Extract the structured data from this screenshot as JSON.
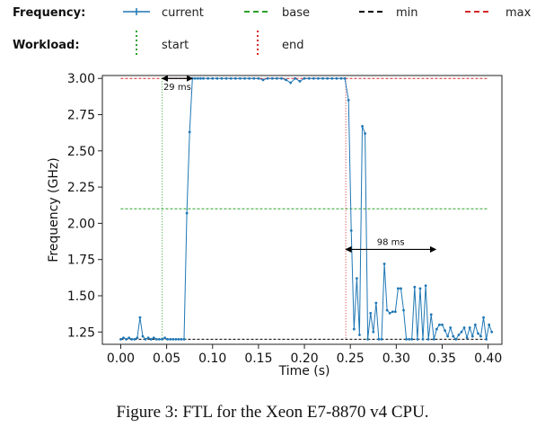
{
  "legend": {
    "frequency_title": "Frequency:",
    "workload_title": "Workload:",
    "items": [
      {
        "label": "current",
        "color": "#1f77b4",
        "style": "solid-with-markers"
      },
      {
        "label": "base",
        "color": "#2ca02c",
        "style": "dashed"
      },
      {
        "label": "min",
        "color": "#000000",
        "style": "dashed"
      },
      {
        "label": "max",
        "color": "#d62728",
        "style": "dashed"
      },
      {
        "label": "start",
        "color": "#2ca02c",
        "style": "dotted-vertical"
      },
      {
        "label": "end",
        "color": "#d62728",
        "style": "dotted-vertical"
      }
    ]
  },
  "caption": "Figure 3: FTL for the Xeon E7-8870 v4 CPU.",
  "chart_data": {
    "type": "line",
    "xlabel": "Time (s)",
    "ylabel": "Frequency (GHz)",
    "xlim": [
      -0.02,
      0.415
    ],
    "ylim": [
      1.165,
      3.02
    ],
    "xticks": [
      0.0,
      0.05,
      0.1,
      0.15,
      0.2,
      0.25,
      0.3,
      0.35,
      0.4
    ],
    "xtick_labels": [
      "0.00",
      "0.05",
      "0.10",
      "0.15",
      "0.20",
      "0.25",
      "0.30",
      "0.35",
      "0.40"
    ],
    "yticks": [
      1.25,
      1.5,
      1.75,
      2.0,
      2.25,
      2.5,
      2.75,
      3.0
    ],
    "ytick_labels": [
      "1.25",
      "1.50",
      "1.75",
      "2.00",
      "2.25",
      "2.50",
      "2.75",
      "3.00"
    ],
    "grid": false,
    "reference_lines": {
      "base": 2.1,
      "min": 1.2,
      "max": 3.0,
      "start": 0.045,
      "end": 0.245
    },
    "annotations": [
      {
        "text": "29 ms",
        "x_from": 0.045,
        "x_to": 0.078,
        "y": 3.0
      },
      {
        "text": "98 ms",
        "x_from": 0.245,
        "x_to": 0.343,
        "y": 1.82
      }
    ],
    "series": [
      {
        "name": "current",
        "x": [
          0.0,
          0.003,
          0.006,
          0.009,
          0.012,
          0.015,
          0.018,
          0.021,
          0.024,
          0.027,
          0.03,
          0.033,
          0.036,
          0.039,
          0.042,
          0.045,
          0.048,
          0.051,
          0.054,
          0.057,
          0.06,
          0.063,
          0.066,
          0.069,
          0.072,
          0.075,
          0.078,
          0.081,
          0.084,
          0.087,
          0.09,
          0.095,
          0.1,
          0.105,
          0.11,
          0.115,
          0.12,
          0.125,
          0.13,
          0.135,
          0.14,
          0.145,
          0.15,
          0.155,
          0.16,
          0.165,
          0.17,
          0.175,
          0.18,
          0.185,
          0.19,
          0.195,
          0.2,
          0.205,
          0.21,
          0.215,
          0.22,
          0.225,
          0.23,
          0.235,
          0.24,
          0.244,
          0.248,
          0.251,
          0.254,
          0.257,
          0.26,
          0.263,
          0.266,
          0.269,
          0.272,
          0.275,
          0.278,
          0.281,
          0.284,
          0.287,
          0.29,
          0.293,
          0.296,
          0.299,
          0.302,
          0.305,
          0.308,
          0.311,
          0.314,
          0.317,
          0.32,
          0.323,
          0.326,
          0.329,
          0.332,
          0.335,
          0.338,
          0.341,
          0.344,
          0.347,
          0.35,
          0.353,
          0.356,
          0.359,
          0.362,
          0.365,
          0.368,
          0.371,
          0.374,
          0.377,
          0.38,
          0.383,
          0.386,
          0.389,
          0.392,
          0.395,
          0.398,
          0.401,
          0.404
        ],
        "y": [
          1.2,
          1.21,
          1.2,
          1.21,
          1.2,
          1.2,
          1.21,
          1.35,
          1.22,
          1.2,
          1.21,
          1.2,
          1.21,
          1.2,
          1.2,
          1.2,
          1.21,
          1.2,
          1.2,
          1.2,
          1.2,
          1.2,
          1.2,
          1.2,
          2.07,
          2.63,
          3.0,
          3.0,
          3.0,
          3.0,
          3.0,
          3.0,
          3.0,
          3.0,
          3.0,
          3.0,
          3.0,
          3.0,
          3.0,
          3.0,
          3.0,
          3.0,
          3.0,
          2.99,
          3.0,
          3.0,
          3.0,
          3.0,
          2.99,
          2.97,
          3.0,
          2.98,
          3.0,
          3.0,
          3.0,
          3.0,
          3.0,
          3.0,
          3.0,
          3.0,
          3.0,
          3.0,
          2.85,
          1.95,
          1.27,
          1.62,
          1.23,
          2.67,
          2.62,
          1.2,
          1.38,
          1.25,
          1.45,
          1.2,
          1.2,
          1.72,
          1.4,
          1.38,
          1.39,
          1.39,
          1.55,
          1.55,
          1.4,
          1.2,
          1.2,
          1.2,
          1.56,
          1.2,
          1.55,
          1.2,
          1.57,
          1.2,
          1.37,
          1.2,
          1.27,
          1.3,
          1.3,
          1.26,
          1.22,
          1.28,
          1.22,
          1.2,
          1.23,
          1.25,
          1.28,
          1.21,
          1.28,
          1.22,
          1.3,
          1.24,
          1.22,
          1.35,
          1.2,
          1.3,
          1.25
        ]
      }
    ]
  }
}
